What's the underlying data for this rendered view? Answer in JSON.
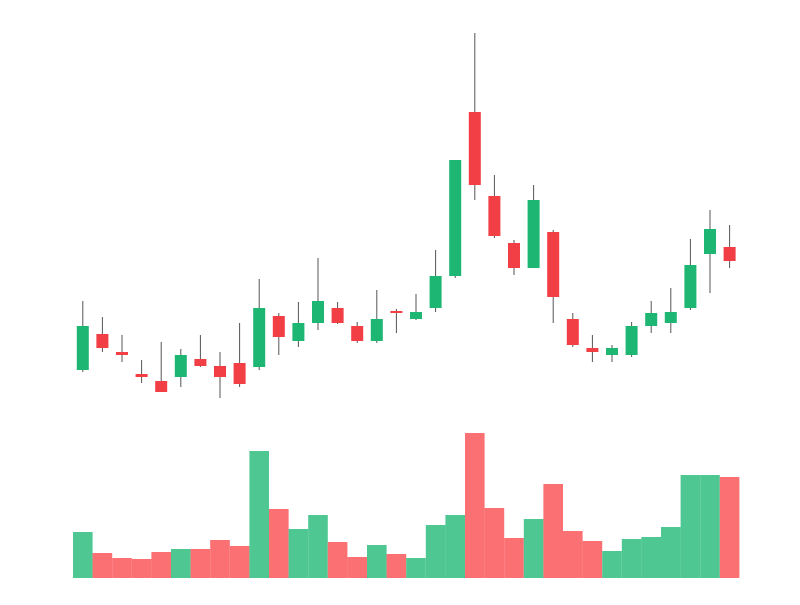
{
  "chart_data": {
    "type": "candlestick",
    "open": [
      50,
      86,
      68,
      46,
      39,
      43,
      61,
      54,
      57,
      53,
      104,
      79,
      97,
      112,
      94,
      79,
      109,
      101,
      112,
      144,
      308,
      224,
      177,
      152,
      188,
      101,
      72,
      65,
      65,
      94,
      97,
      112,
      166,
      173
    ],
    "high": [
      119,
      103,
      85,
      60,
      78,
      71,
      85,
      68,
      97,
      141,
      107,
      118,
      162,
      118,
      98,
      130,
      111,
      126,
      170,
      260,
      387,
      245,
      180,
      235,
      190,
      107,
      85,
      75,
      98,
      119,
      132,
      181,
      210,
      195
    ],
    "low": [
      48,
      68,
      58,
      37,
      28,
      33,
      53,
      22,
      33,
      50,
      65,
      73,
      90,
      96,
      77,
      77,
      87,
      100,
      108,
      142,
      220,
      182,
      145,
      152,
      97,
      73,
      58,
      58,
      63,
      87,
      87,
      110,
      127,
      152
    ],
    "close": [
      94,
      72,
      65,
      43,
      28,
      65,
      54,
      43,
      36,
      112,
      83,
      97,
      119,
      97,
      79,
      101,
      107,
      108,
      144,
      260,
      235,
      184,
      152,
      220,
      123,
      75,
      68,
      72,
      94,
      107,
      108,
      155,
      191,
      159
    ],
    "ylim": [
      0,
      400
    ],
    "up_color": "#1db672",
    "down_color": "#f23e45",
    "volume": {
      "values": [
        46,
        25,
        20,
        19,
        26,
        29,
        29,
        38,
        32,
        127,
        69,
        49,
        63,
        36,
        21,
        33,
        24,
        20,
        53,
        63,
        145,
        70,
        40,
        59,
        94,
        47,
        37,
        27,
        39,
        41,
        51,
        103,
        103,
        101
      ],
      "ylim": [
        0,
        150
      ],
      "up_color": "#4fc792",
      "down_color": "#fb7073"
    }
  }
}
